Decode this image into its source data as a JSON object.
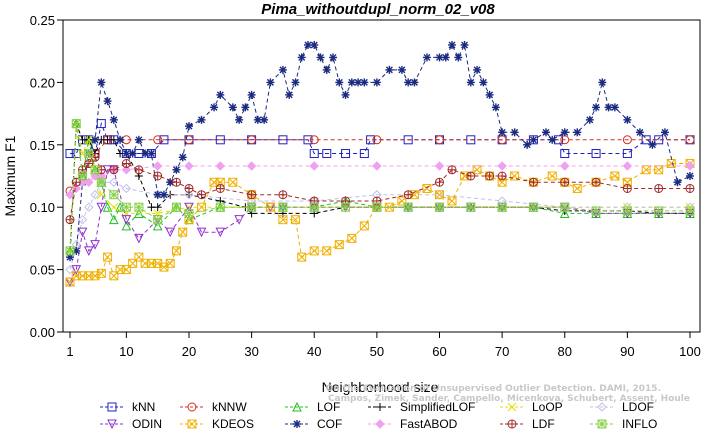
{
  "chart_data": {
    "type": "line",
    "title": "Pima_withoutdupl_norm_02_v08",
    "xlabel": "Neighborhood size",
    "ylabel": "Maximum F1",
    "xlim": [
      1,
      100
    ],
    "ylim": [
      0,
      0.25
    ],
    "xticks": [
      1,
      10,
      20,
      30,
      40,
      50,
      60,
      70,
      80,
      90,
      100
    ],
    "yticks": [
      0.0,
      0.05,
      0.1,
      0.15,
      0.2,
      0.25
    ],
    "ytick_labels": [
      "0.00",
      "0.05",
      "0.10",
      "0.15",
      "0.20",
      "0.25"
    ],
    "grid": false,
    "legend_position": "bottom",
    "watermark_lines": [
      "Campos, Zimek, Sander, Campello, Micenkova, Schubert, Assent, Houle",
      "On the Evaluation of Unsupervised Outlier Detection. DAMI, 2015."
    ],
    "series": [
      {
        "name": "kNN",
        "color": "#2020c0",
        "marker": "square",
        "x": [
          1,
          2,
          3,
          4,
          5,
          6,
          7,
          8,
          10,
          12,
          14,
          16,
          20,
          25,
          30,
          35,
          39,
          40,
          42,
          45,
          48,
          49,
          55,
          60,
          65,
          70,
          75,
          79,
          80,
          85,
          90,
          93,
          95,
          100
        ],
        "values": [
          0.143,
          0.143,
          0.154,
          0.154,
          0.143,
          0.167,
          0.154,
          0.154,
          0.143,
          0.143,
          0.143,
          0.154,
          0.154,
          0.154,
          0.154,
          0.154,
          0.154,
          0.143,
          0.143,
          0.143,
          0.143,
          0.154,
          0.154,
          0.154,
          0.154,
          0.154,
          0.154,
          0.154,
          0.143,
          0.143,
          0.143,
          0.154,
          0.154,
          0.154
        ]
      },
      {
        "name": "kNNW",
        "color": "#d03020",
        "marker": "circle",
        "x": [
          1,
          2,
          3,
          4,
          5,
          7,
          10,
          15,
          20,
          30,
          40,
          50,
          60,
          70,
          80,
          90,
          100
        ],
        "values": [
          0.113,
          0.12,
          0.125,
          0.135,
          0.143,
          0.154,
          0.154,
          0.154,
          0.154,
          0.154,
          0.154,
          0.154,
          0.154,
          0.154,
          0.154,
          0.154,
          0.154
        ]
      },
      {
        "name": "LOF",
        "color": "#20c020",
        "marker": "triangle-up",
        "x": [
          1,
          2,
          3,
          4,
          5,
          6,
          7,
          8,
          9,
          10,
          12,
          15,
          18,
          20,
          25,
          30,
          35,
          40,
          45,
          50,
          55,
          60,
          65,
          70,
          75,
          80,
          85,
          90,
          95,
          100
        ],
        "values": [
          0.065,
          0.167,
          0.125,
          0.154,
          0.13,
          0.12,
          0.1,
          0.09,
          0.1,
          0.085,
          0.095,
          0.085,
          0.1,
          0.09,
          0.1,
          0.1,
          0.1,
          0.1,
          0.105,
          0.1,
          0.1,
          0.1,
          0.1,
          0.1,
          0.1,
          0.095,
          0.095,
          0.095,
          0.095,
          0.095
        ]
      },
      {
        "name": "SimplifiedLOF",
        "color": "#000000",
        "marker": "plus",
        "x": [
          1,
          2,
          3,
          4,
          5,
          6,
          7,
          8,
          9,
          10,
          12,
          14,
          15,
          17,
          20,
          25,
          29,
          30,
          35,
          40,
          45,
          50,
          55,
          60,
          65,
          70,
          75,
          80,
          85,
          90,
          95,
          100
        ],
        "values": [
          0.06,
          0.167,
          0.154,
          0.154,
          0.143,
          0.154,
          0.154,
          0.154,
          0.143,
          0.143,
          0.125,
          0.1,
          0.1,
          0.11,
          0.11,
          0.105,
          0.1,
          0.095,
          0.095,
          0.095,
          0.1,
          0.1,
          0.1,
          0.1,
          0.1,
          0.1,
          0.1,
          0.097,
          0.097,
          0.097,
          0.095,
          0.095
        ]
      },
      {
        "name": "LoOP",
        "color": "#e0e000",
        "marker": "x",
        "x": [
          1,
          2,
          3,
          4,
          5,
          6,
          8,
          10,
          15,
          20,
          30,
          40,
          50,
          60,
          70,
          80,
          90,
          100
        ],
        "values": [
          0.065,
          0.167,
          0.143,
          0.154,
          0.125,
          0.11,
          0.1,
          0.095,
          0.095,
          0.1,
          0.1,
          0.1,
          0.1,
          0.1,
          0.1,
          0.1,
          0.1,
          0.1
        ]
      },
      {
        "name": "LDOF",
        "color": "#c0c0e8",
        "marker": "diamond",
        "x": [
          1,
          2,
          3,
          4,
          5,
          6,
          8,
          10,
          15,
          20,
          30,
          40,
          50,
          60,
          70,
          80,
          90,
          100
        ],
        "values": [
          0.05,
          0.07,
          0.09,
          0.1,
          0.11,
          0.12,
          0.12,
          0.115,
          0.11,
          0.11,
          0.105,
          0.105,
          0.11,
          0.11,
          0.105,
          0.1,
          0.1,
          0.1
        ]
      },
      {
        "name": "ODIN",
        "color": "#9030d0",
        "marker": "triangle-down",
        "x": [
          1,
          2,
          3,
          4,
          5,
          6,
          7,
          8,
          10,
          12,
          15,
          17,
          20,
          22,
          25,
          28,
          30,
          33,
          35,
          40,
          45,
          50,
          55,
          60,
          65,
          70,
          75,
          80,
          85,
          90,
          95,
          100
        ],
        "values": [
          0.04,
          0.05,
          0.08,
          0.065,
          0.07,
          0.1,
          0.13,
          0.13,
          0.09,
          0.075,
          0.09,
          0.08,
          0.1,
          0.08,
          0.08,
          0.09,
          0.1,
          0.1,
          0.1,
          0.1,
          0.1,
          0.1,
          0.1,
          0.1,
          0.1,
          0.1,
          0.1,
          0.1,
          0.095,
          0.095,
          0.095,
          0.095
        ]
      },
      {
        "name": "KDEOS",
        "color": "#f0b000",
        "marker": "square-x",
        "x": [
          1,
          2,
          3,
          4,
          5,
          6,
          7,
          8,
          9,
          10,
          11,
          12,
          13,
          14,
          15,
          16,
          17,
          18,
          19,
          20,
          22,
          24,
          25,
          27,
          30,
          33,
          35,
          37,
          38,
          40,
          42,
          44,
          46,
          48,
          50,
          52,
          54,
          56,
          58,
          60,
          62,
          64,
          66,
          68,
          70,
          72,
          75,
          78,
          80,
          82,
          85,
          88,
          90,
          93,
          95,
          97,
          100
        ],
        "values": [
          0.04,
          0.045,
          0.045,
          0.045,
          0.045,
          0.047,
          0.06,
          0.045,
          0.05,
          0.05,
          0.055,
          0.06,
          0.055,
          0.055,
          0.055,
          0.052,
          0.055,
          0.065,
          0.08,
          0.09,
          0.1,
          0.12,
          0.12,
          0.12,
          0.11,
          0.1,
          0.09,
          0.09,
          0.06,
          0.065,
          0.065,
          0.07,
          0.075,
          0.085,
          0.1,
          0.1,
          0.105,
          0.11,
          0.115,
          0.11,
          0.105,
          0.125,
          0.13,
          0.125,
          0.12,
          0.125,
          0.12,
          0.125,
          0.12,
          0.115,
          0.12,
          0.125,
          0.12,
          0.13,
          0.13,
          0.135,
          0.135
        ]
      },
      {
        "name": "COF",
        "color": "#1a2a80",
        "marker": "asterisk",
        "x": [
          1,
          2,
          3,
          4,
          5,
          6,
          7,
          8,
          9,
          10,
          11,
          12,
          13,
          14,
          15,
          16,
          17,
          18,
          19,
          20,
          22,
          24,
          25,
          27,
          28,
          29,
          30,
          31,
          32,
          33,
          35,
          36,
          37,
          38,
          39,
          40,
          41,
          42,
          43,
          44,
          45,
          46,
          47,
          48,
          50,
          52,
          54,
          55,
          56,
          58,
          60,
          61,
          62,
          63,
          64,
          65,
          66,
          67,
          68,
          69,
          70,
          72,
          74,
          75,
          77,
          78,
          80,
          82,
          84,
          85,
          86,
          87,
          88,
          90,
          92,
          94,
          96,
          98,
          100
        ],
        "values": [
          0.06,
          0.065,
          0.12,
          0.143,
          0.154,
          0.2,
          0.185,
          0.17,
          0.154,
          0.143,
          0.143,
          0.154,
          0.143,
          0.143,
          0.11,
          0.11,
          0.12,
          0.13,
          0.14,
          0.165,
          0.17,
          0.18,
          0.19,
          0.18,
          0.17,
          0.18,
          0.19,
          0.17,
          0.17,
          0.2,
          0.21,
          0.19,
          0.2,
          0.22,
          0.23,
          0.23,
          0.22,
          0.21,
          0.22,
          0.2,
          0.19,
          0.2,
          0.2,
          0.2,
          0.2,
          0.21,
          0.21,
          0.2,
          0.2,
          0.22,
          0.22,
          0.22,
          0.23,
          0.22,
          0.23,
          0.2,
          0.21,
          0.2,
          0.19,
          0.18,
          0.16,
          0.16,
          0.15,
          0.154,
          0.16,
          0.154,
          0.16,
          0.16,
          0.17,
          0.18,
          0.2,
          0.18,
          0.18,
          0.17,
          0.16,
          0.15,
          0.16,
          0.12,
          0.125
        ]
      },
      {
        "name": "FastABOD",
        "color": "#f0a0f0",
        "marker": "diamond-filled",
        "x": [
          1,
          2,
          3,
          4,
          5,
          6,
          8,
          10,
          15,
          20,
          25,
          30,
          40,
          50,
          60,
          70,
          80,
          90,
          100
        ],
        "values": [
          0.11,
          0.115,
          0.12,
          0.12,
          0.125,
          0.125,
          0.13,
          0.13,
          0.133,
          0.133,
          0.133,
          0.133,
          0.133,
          0.133,
          0.133,
          0.133,
          0.133,
          0.133,
          0.133
        ]
      },
      {
        "name": "LDF",
        "color": "#a02828",
        "marker": "circle-plus",
        "x": [
          1,
          2,
          3,
          4,
          5,
          6,
          8,
          10,
          12,
          15,
          18,
          20,
          22,
          25,
          30,
          35,
          40,
          45,
          50,
          55,
          60,
          62,
          65,
          68,
          70,
          75,
          80,
          85,
          90,
          95,
          100
        ],
        "values": [
          0.09,
          0.12,
          0.13,
          0.135,
          0.14,
          0.13,
          0.13,
          0.135,
          0.13,
          0.125,
          0.12,
          0.115,
          0.11,
          0.115,
          0.11,
          0.11,
          0.105,
          0.105,
          0.105,
          0.11,
          0.12,
          0.13,
          0.125,
          0.125,
          0.125,
          0.12,
          0.12,
          0.12,
          0.115,
          0.115,
          0.115
        ]
      },
      {
        "name": "INFLO",
        "color": "#88d048",
        "marker": "star-square",
        "x": [
          1,
          2,
          3,
          4,
          5,
          6,
          8,
          10,
          12,
          15,
          18,
          20,
          25,
          30,
          35,
          40,
          45,
          50,
          55,
          60,
          65,
          70,
          75,
          80,
          85,
          90,
          95,
          100
        ],
        "values": [
          0.065,
          0.167,
          0.125,
          0.143,
          0.13,
          0.12,
          0.11,
          0.1,
          0.1,
          0.09,
          0.1,
          0.095,
          0.1,
          0.1,
          0.1,
          0.1,
          0.1,
          0.1,
          0.1,
          0.1,
          0.1,
          0.1,
          0.1,
          0.1,
          0.097,
          0.097,
          0.097,
          0.097
        ]
      }
    ]
  }
}
